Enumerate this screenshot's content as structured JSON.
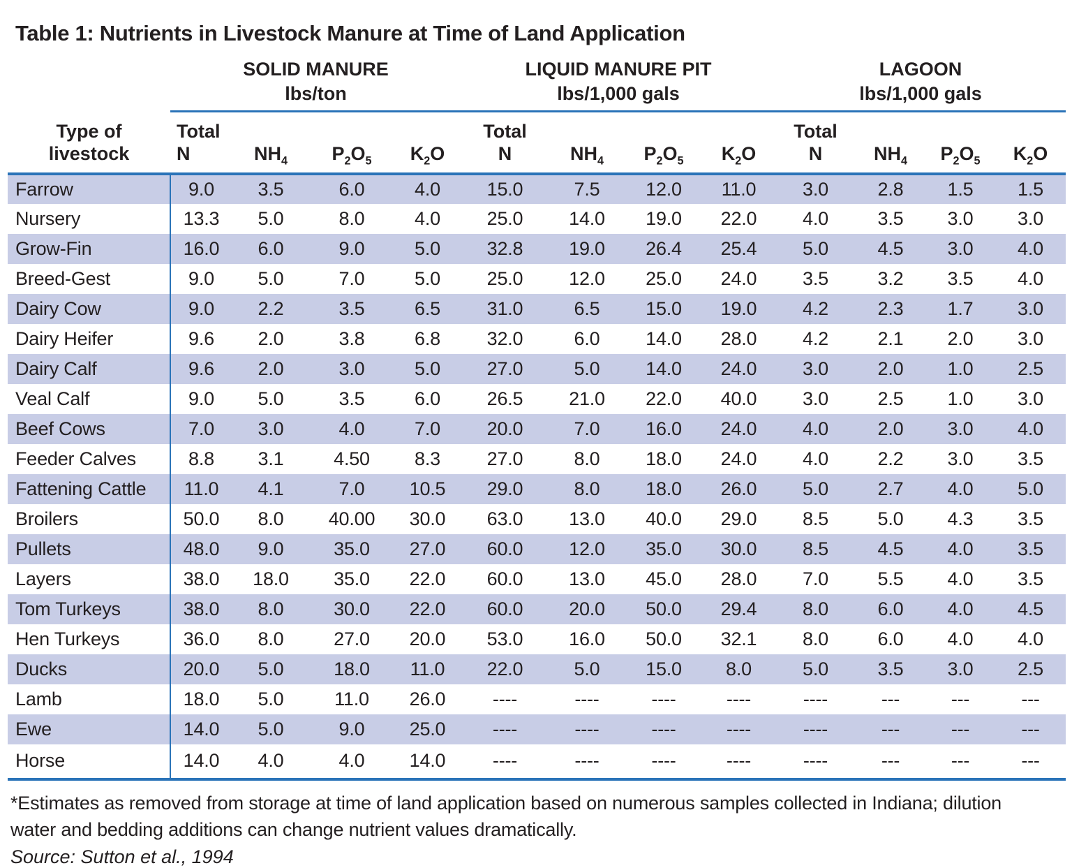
{
  "title": "Table 1: Nutrients in Livestock Manure at Time of Land Application",
  "header": {
    "row_label": "Type of\nlivestock",
    "groups": [
      {
        "name": "SOLID MANURE",
        "unit": "lbs/ton"
      },
      {
        "name": "LIQUID MANURE PIT",
        "unit": "lbs/1,000 gals"
      },
      {
        "name": "LAGOON",
        "unit": "lbs/1,000 gals"
      }
    ],
    "nutrients": [
      "Total\nN",
      "NH~4~",
      "P~2~O~5~",
      "K~2~O"
    ]
  },
  "rows": [
    {
      "livestock": "Farrow",
      "solid": [
        "9.0",
        "3.5",
        "6.0",
        "4.0"
      ],
      "liquid": [
        "15.0",
        "7.5",
        "12.0",
        "11.0"
      ],
      "lagoon": [
        "3.0",
        "2.8",
        "1.5",
        "1.5"
      ]
    },
    {
      "livestock": "Nursery",
      "solid": [
        "13.3",
        "5.0",
        "8.0",
        "4.0"
      ],
      "liquid": [
        "25.0",
        "14.0",
        "19.0",
        "22.0"
      ],
      "lagoon": [
        "4.0",
        "3.5",
        "3.0",
        "3.0"
      ]
    },
    {
      "livestock": "Grow-Fin",
      "solid": [
        "16.0",
        "6.0",
        "9.0",
        "5.0"
      ],
      "liquid": [
        "32.8",
        "19.0",
        "26.4",
        "25.4"
      ],
      "lagoon": [
        "5.0",
        "4.5",
        "3.0",
        "4.0"
      ]
    },
    {
      "livestock": "Breed-Gest",
      "solid": [
        "9.0",
        "5.0",
        "7.0",
        "5.0"
      ],
      "liquid": [
        "25.0",
        "12.0",
        "25.0",
        "24.0"
      ],
      "lagoon": [
        "3.5",
        "3.2",
        "3.5",
        "4.0"
      ]
    },
    {
      "livestock": "Dairy Cow",
      "solid": [
        "9.0",
        "2.2",
        "3.5",
        "6.5"
      ],
      "liquid": [
        "31.0",
        "6.5",
        "15.0",
        "19.0"
      ],
      "lagoon": [
        "4.2",
        "2.3",
        "1.7",
        "3.0"
      ]
    },
    {
      "livestock": "Dairy Heifer",
      "solid": [
        "9.6",
        "2.0",
        "3.8",
        "6.8"
      ],
      "liquid": [
        "32.0",
        "6.0",
        "14.0",
        "28.0"
      ],
      "lagoon": [
        "4.2",
        "2.1",
        "2.0",
        "3.0"
      ]
    },
    {
      "livestock": "Dairy Calf",
      "solid": [
        "9.6",
        "2.0",
        "3.0",
        "5.0"
      ],
      "liquid": [
        "27.0",
        "5.0",
        "14.0",
        "24.0"
      ],
      "lagoon": [
        "3.0",
        "2.0",
        "1.0",
        "2.5"
      ]
    },
    {
      "livestock": "Veal Calf",
      "solid": [
        "9.0",
        "5.0",
        "3.5",
        "6.0"
      ],
      "liquid": [
        "26.5",
        "21.0",
        "22.0",
        "40.0"
      ],
      "lagoon": [
        "3.0",
        "2.5",
        "1.0",
        "3.0"
      ]
    },
    {
      "livestock": "Beef Cows",
      "solid": [
        "7.0",
        "3.0",
        "4.0",
        "7.0"
      ],
      "liquid": [
        "20.0",
        "7.0",
        "16.0",
        "24.0"
      ],
      "lagoon": [
        "4.0",
        "2.0",
        "3.0",
        "4.0"
      ]
    },
    {
      "livestock": "Feeder Calves",
      "solid": [
        "8.8",
        "3.1",
        "4.50",
        "8.3"
      ],
      "liquid": [
        "27.0",
        "8.0",
        "18.0",
        "24.0"
      ],
      "lagoon": [
        "4.0",
        "2.2",
        "3.0",
        "3.5"
      ]
    },
    {
      "livestock": "Fattening Cattle",
      "solid": [
        "11.0",
        "4.1",
        "7.0",
        "10.5"
      ],
      "liquid": [
        "29.0",
        "8.0",
        "18.0",
        "26.0"
      ],
      "lagoon": [
        "5.0",
        "2.7",
        "4.0",
        "5.0"
      ]
    },
    {
      "livestock": "Broilers",
      "solid": [
        "50.0",
        "8.0",
        "40.00",
        "30.0"
      ],
      "liquid": [
        "63.0",
        "13.0",
        "40.0",
        "29.0"
      ],
      "lagoon": [
        "8.5",
        "5.0",
        "4.3",
        "3.5"
      ]
    },
    {
      "livestock": "Pullets",
      "solid": [
        "48.0",
        "9.0",
        "35.0",
        "27.0"
      ],
      "liquid": [
        "60.0",
        "12.0",
        "35.0",
        "30.0"
      ],
      "lagoon": [
        "8.5",
        "4.5",
        "4.0",
        "3.5"
      ]
    },
    {
      "livestock": "Layers",
      "solid": [
        "38.0",
        "18.0",
        "35.0",
        "22.0"
      ],
      "liquid": [
        "60.0",
        "13.0",
        "45.0",
        "28.0"
      ],
      "lagoon": [
        "7.0",
        "5.5",
        "4.0",
        "3.5"
      ]
    },
    {
      "livestock": "Tom Turkeys",
      "solid": [
        "38.0",
        "8.0",
        "30.0",
        "22.0"
      ],
      "liquid": [
        "60.0",
        "20.0",
        "50.0",
        "29.4"
      ],
      "lagoon": [
        "8.0",
        "6.0",
        "4.0",
        "4.5"
      ]
    },
    {
      "livestock": "Hen Turkeys",
      "solid": [
        "36.0",
        "8.0",
        "27.0",
        "20.0"
      ],
      "liquid": [
        "53.0",
        "16.0",
        "50.0",
        "32.1"
      ],
      "lagoon": [
        "8.0",
        "6.0",
        "4.0",
        "4.0"
      ]
    },
    {
      "livestock": "Ducks",
      "solid": [
        "20.0",
        "5.0",
        "18.0",
        "11.0"
      ],
      "liquid": [
        "22.0",
        "5.0",
        "15.0",
        "8.0"
      ],
      "lagoon": [
        "5.0",
        "3.5",
        "3.0",
        "2.5"
      ]
    },
    {
      "livestock": "Lamb",
      "solid": [
        "18.0",
        "5.0",
        "11.0",
        "26.0"
      ],
      "liquid": [
        "----",
        "----",
        "----",
        "----"
      ],
      "lagoon": [
        "----",
        "---",
        "---",
        "---"
      ]
    },
    {
      "livestock": "Ewe",
      "solid": [
        "14.0",
        "5.0",
        "9.0",
        "25.0"
      ],
      "liquid": [
        "----",
        "----",
        "----",
        "----"
      ],
      "lagoon": [
        "----",
        "---",
        "---",
        "---"
      ]
    },
    {
      "livestock": "Horse",
      "solid": [
        "14.0",
        "4.0",
        "4.0",
        "14.0"
      ],
      "liquid": [
        "----",
        "----",
        "----",
        "----"
      ],
      "lagoon": [
        "----",
        "---",
        "---",
        "---"
      ]
    }
  ],
  "footnote": "*Estimates as removed from storage at time of land application based on numerous samples collected in Indiana; dilution water and bedding additions can change nutrient values dramatically.",
  "source": "Source: Sutton et al., 1994",
  "colors": {
    "stripe": "#c8cde6",
    "rule": "#2a73b8",
    "text": "#231f20"
  }
}
